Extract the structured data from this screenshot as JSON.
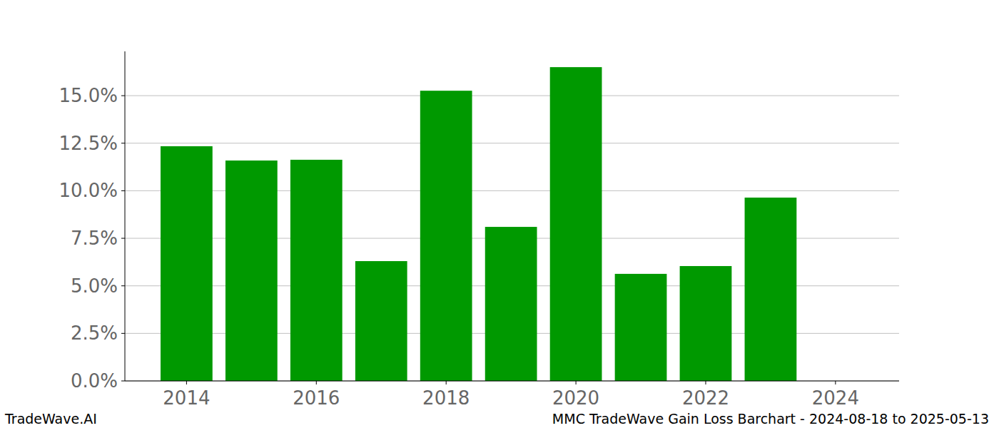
{
  "chart_data": {
    "type": "bar",
    "title": "MMC TradeWave Gain Loss Barchart - 2024-08-18 to 2025-05-13",
    "annotations": [
      "TradeWave.AI"
    ],
    "x": [
      2014,
      2015,
      2016,
      2017,
      2018,
      2019,
      2020,
      2021,
      2022,
      2023
    ],
    "values": [
      12.34,
      11.59,
      11.63,
      6.3,
      15.26,
      8.1,
      16.5,
      5.63,
      6.04,
      9.64
    ],
    "color": "#009900",
    "xlim": [
      2013.05,
      2024.98
    ],
    "xticks": [
      2014,
      2016,
      2018,
      2020,
      2022,
      2024
    ],
    "ylim": [
      0,
      17.33
    ],
    "yticks": [
      {
        "value": 0,
        "label": "0.0%"
      },
      {
        "value": 2.5,
        "label": "2.5%"
      },
      {
        "value": 5,
        "label": "5.0%"
      },
      {
        "value": 7.5,
        "label": "7.5%"
      },
      {
        "value": 10,
        "label": "10.0%"
      },
      {
        "value": 12.5,
        "label": "12.5%"
      },
      {
        "value": 15,
        "label": "15.0%"
      }
    ],
    "grid": true
  }
}
